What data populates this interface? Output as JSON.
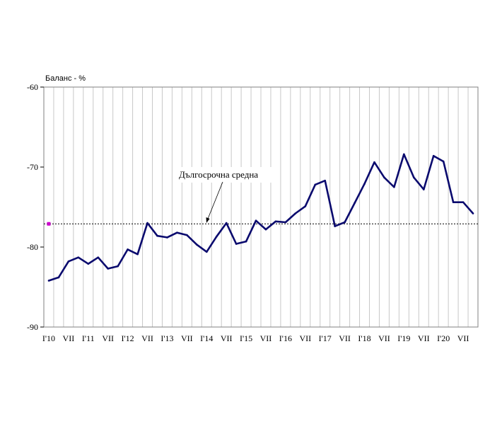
{
  "chart_data": {
    "type": "line",
    "ylabel": "Баланс - %",
    "ylim": [
      -90,
      -60
    ],
    "yticks": [
      -60,
      -70,
      -80,
      -90
    ],
    "xtick_labels": [
      "I'10",
      "VII",
      "I'11",
      "VII",
      "I'12",
      "VII",
      "I'13",
      "VII",
      "I'14",
      "VII",
      "I'15",
      "VII",
      "I'16",
      "VII",
      "I'17",
      "VII",
      "I'18",
      "VII",
      "I'19",
      "VII",
      "I'20",
      "VII"
    ],
    "grid": "vertical",
    "series": [
      {
        "color": "#0a0a6e",
        "values": [
          -84.2,
          -83.8,
          -81.8,
          -81.3,
          -82.1,
          -81.3,
          -82.7,
          -82.4,
          -80.3,
          -80.9,
          -77.0,
          -78.6,
          -78.8,
          -78.2,
          -78.5,
          -79.7,
          -80.6,
          -78.7,
          -77.0,
          -79.6,
          -79.3,
          -76.7,
          -77.8,
          -76.8,
          -76.9,
          -75.8,
          -74.9,
          -72.2,
          -71.7,
          -77.4,
          -76.9,
          -74.5,
          -72.1,
          -69.4,
          -71.3,
          -72.5,
          -68.4,
          -71.3,
          -72.8,
          -68.6,
          -69.3,
          -74.4,
          -74.4,
          -75.8
        ]
      },
      {
        "name": "Дългосрочна средна",
        "color": "#000000",
        "style": "dashed",
        "value": -77.1
      }
    ],
    "annotations": [
      {
        "text": "Дългосрочна средна"
      }
    ]
  }
}
